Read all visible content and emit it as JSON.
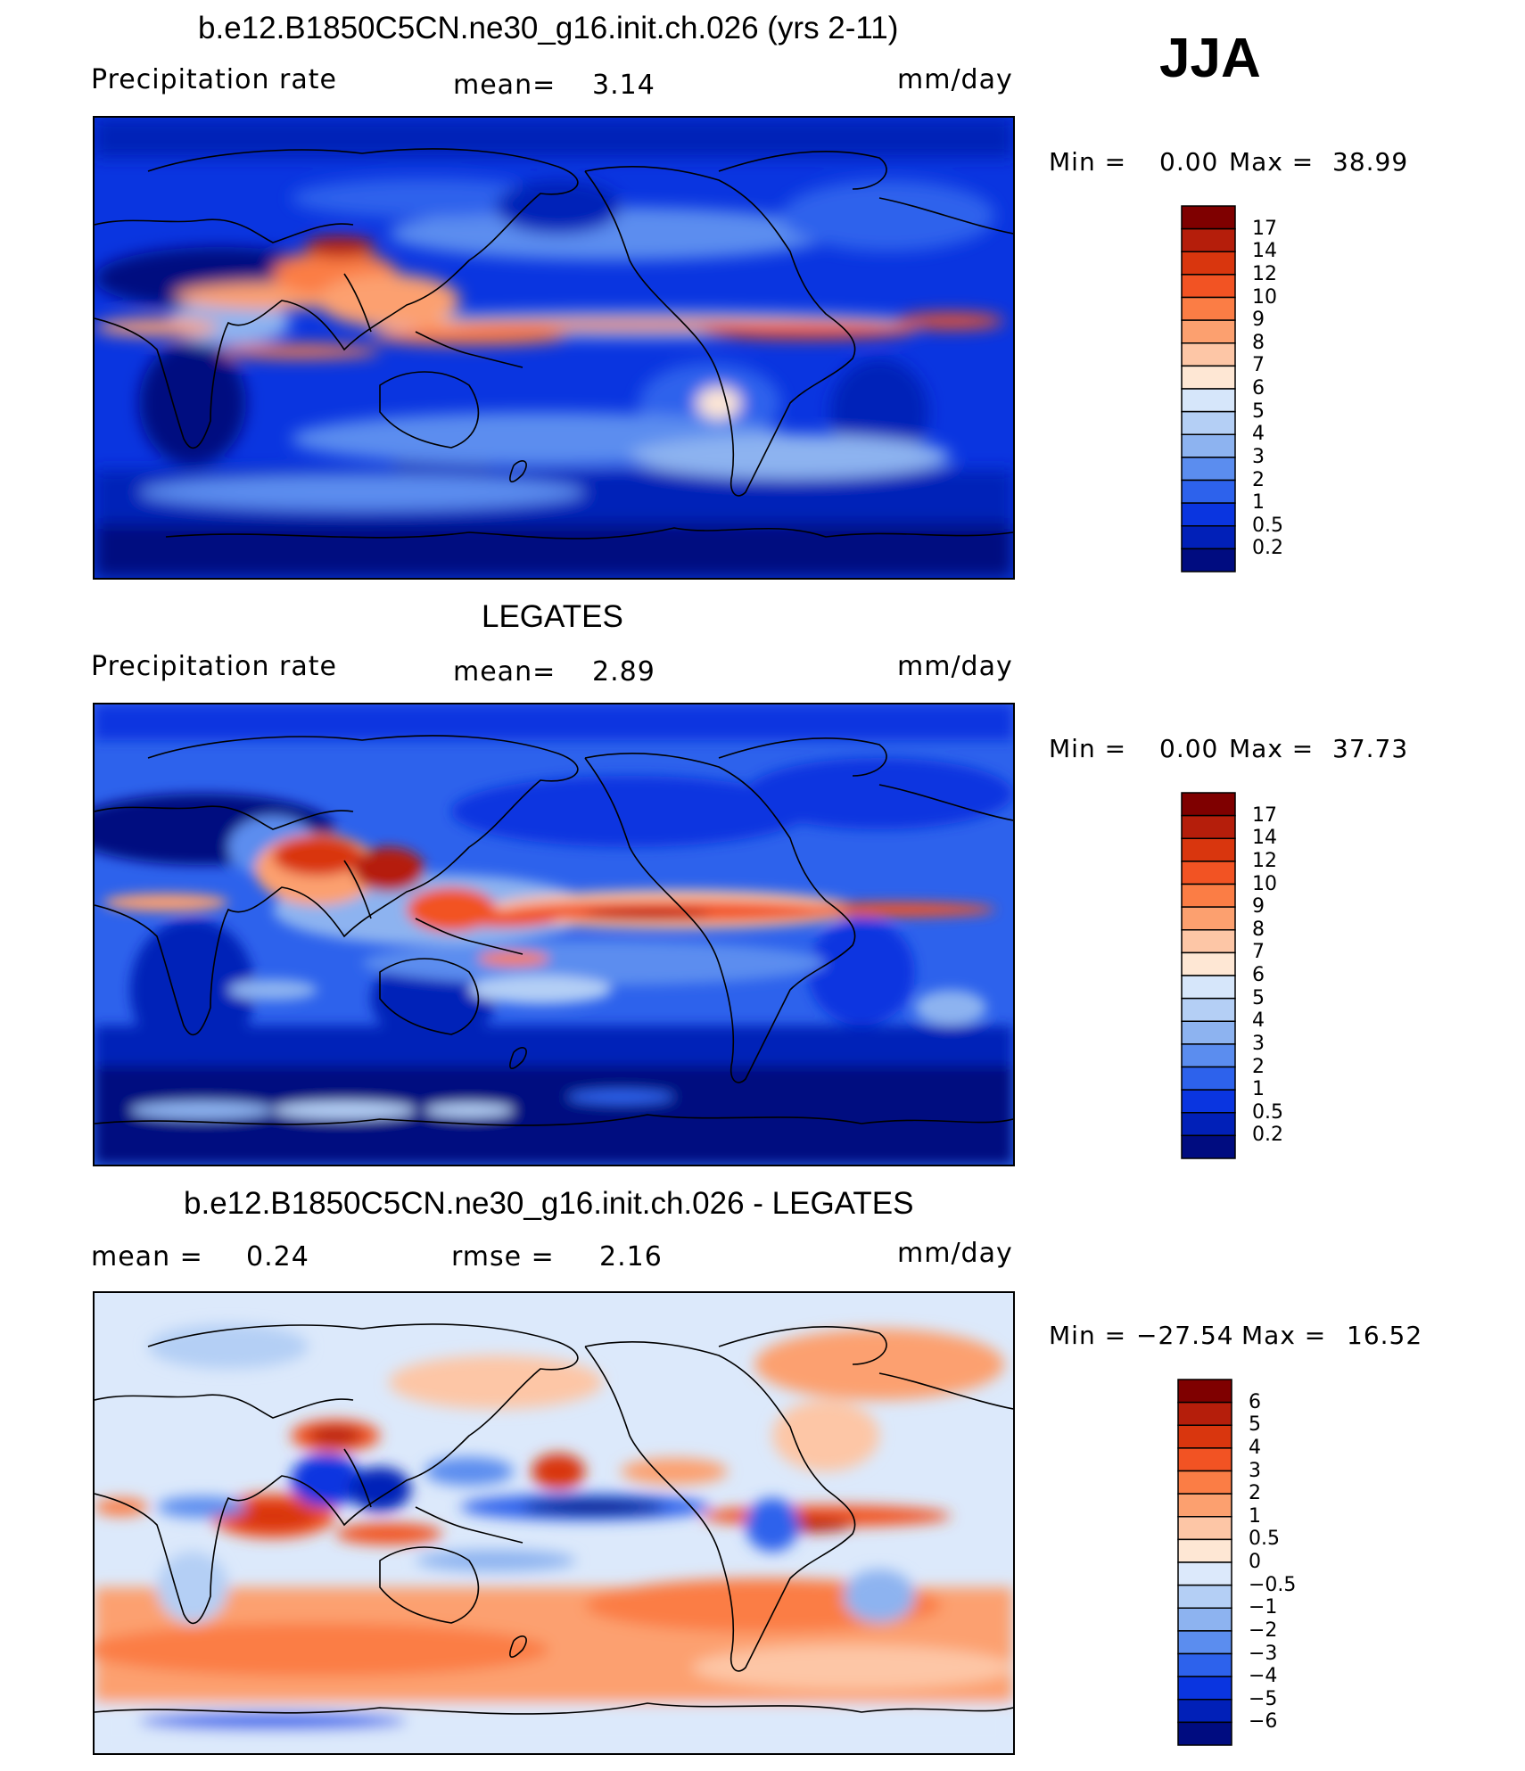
{
  "season": "JJA",
  "panels": [
    {
      "title": "b.e12.B1850C5CN.ne30_g16.init.ch.026 (yrs 2-11)",
      "left_label": "Precipitation  rate",
      "mid_label": "mean=",
      "mid_value": "3.14",
      "units": "mm/day",
      "min_label": "Min  =",
      "min_value": "0.00",
      "max_label": "Max  =",
      "max_value": "38.99",
      "colorbar": {
        "labels": [
          "17",
          "14",
          "12",
          "10",
          "9",
          "8",
          "7",
          "6",
          "5",
          "4",
          "3",
          "2",
          "1",
          "0.5",
          "0.2"
        ],
        "colors": [
          "#7f0000",
          "#b51e0b",
          "#d9360e",
          "#f25323",
          "#fb7d45",
          "#fca06f",
          "#fdc6a6",
          "#fee7d4",
          "#d6e6fa",
          "#b4cff5",
          "#8db3f0",
          "#5b8def",
          "#2d62ec",
          "#0a35e0",
          "#0120b8",
          "#000c80"
        ]
      },
      "map_palette": "precip"
    },
    {
      "title": "LEGATES",
      "left_label": "Precipitation  rate",
      "mid_label": "mean=",
      "mid_value": "2.89",
      "units": "mm/day",
      "min_label": "Min  =",
      "min_value": "0.00",
      "max_label": "Max  =",
      "max_value": "37.73",
      "colorbar": {
        "labels": [
          "17",
          "14",
          "12",
          "10",
          "9",
          "8",
          "7",
          "6",
          "5",
          "4",
          "3",
          "2",
          "1",
          "0.5",
          "0.2"
        ],
        "colors": [
          "#7f0000",
          "#b51e0b",
          "#d9360e",
          "#f25323",
          "#fb7d45",
          "#fca06f",
          "#fdc6a6",
          "#fee7d4",
          "#d6e6fa",
          "#b4cff5",
          "#8db3f0",
          "#5b8def",
          "#2d62ec",
          "#0a35e0",
          "#0120b8",
          "#000c80"
        ]
      },
      "map_palette": "precip"
    },
    {
      "title": "b.e12.B1850C5CN.ne30_g16.init.ch.026 - LEGATES",
      "left_label": "mean  =",
      "left_value": "0.24",
      "mid_label": "rmse  =",
      "mid_value": "2.16",
      "units": "mm/day",
      "min_label": "Min  =",
      "min_value": "−27.54",
      "max_label": "Max  =",
      "max_value": "16.52",
      "colorbar": {
        "labels": [
          "6",
          "5",
          "4",
          "3",
          "2",
          "1",
          "0.5",
          "0",
          "−0.5",
          "−1",
          "−2",
          "−3",
          "−4",
          "−5",
          "−6"
        ],
        "colors": [
          "#7f0000",
          "#b51e0b",
          "#d9360e",
          "#f25323",
          "#fb7d45",
          "#fca06f",
          "#fdc6a6",
          "#fee7d4",
          "#dce9fb",
          "#b4cff5",
          "#8db3f0",
          "#5b8def",
          "#2d62ec",
          "#0a35e0",
          "#0120b8",
          "#000c80"
        ]
      },
      "map_palette": "diff"
    }
  ]
}
